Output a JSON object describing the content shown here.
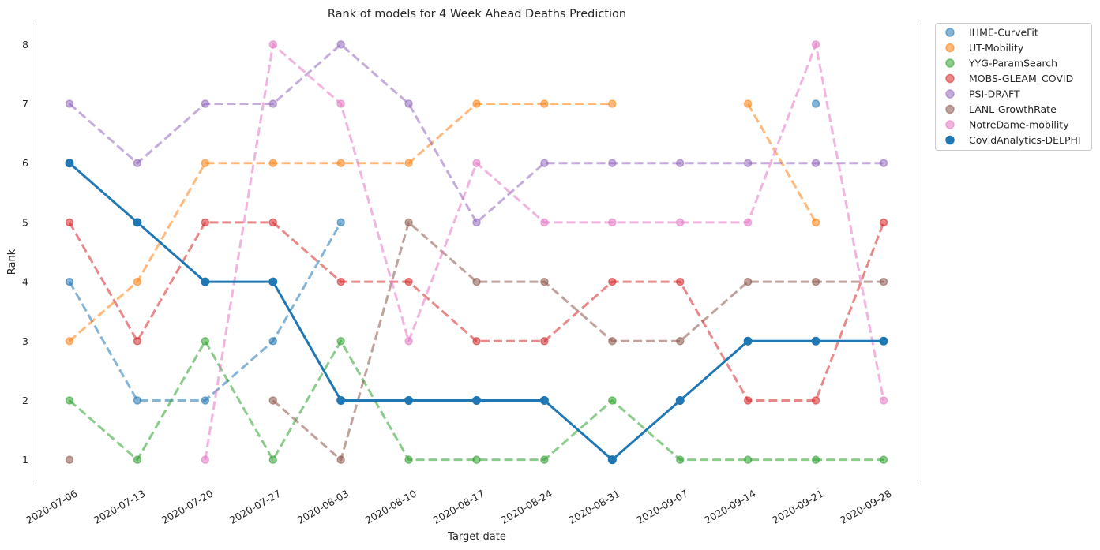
{
  "chart_data": {
    "type": "line",
    "title": "Rank of models for 4 Week Ahead Deaths Prediction",
    "xlabel": "Target date",
    "ylabel": "Rank",
    "categories": [
      "2020-07-06",
      "2020-07-13",
      "2020-07-20",
      "2020-07-27",
      "2020-08-03",
      "2020-08-10",
      "2020-08-17",
      "2020-08-24",
      "2020-08-31",
      "2020-09-07",
      "2020-09-14",
      "2020-09-21",
      "2020-09-28"
    ],
    "yticks": [
      1,
      2,
      3,
      4,
      5,
      6,
      7,
      8
    ],
    "ylim": [
      0.65,
      8.35
    ],
    "grid": false,
    "legend_position": "outside-top-right",
    "series": [
      {
        "name": "IHME-CurveFit",
        "color": "#1f77b4",
        "emphasis": false,
        "values": [
          4,
          2,
          2,
          3,
          5,
          null,
          null,
          null,
          null,
          null,
          null,
          7,
          null
        ]
      },
      {
        "name": "UT-Mobility",
        "color": "#ff7f0e",
        "emphasis": false,
        "values": [
          3,
          4,
          6,
          6,
          6,
          6,
          7,
          7,
          7,
          null,
          7,
          5,
          null
        ]
      },
      {
        "name": "YYG-ParamSearch",
        "color": "#2ca02c",
        "emphasis": false,
        "values": [
          2,
          1,
          3,
          1,
          3,
          1,
          1,
          1,
          2,
          1,
          1,
          1,
          1
        ]
      },
      {
        "name": "MOBS-GLEAM_COVID",
        "color": "#d62728",
        "emphasis": false,
        "values": [
          5,
          3,
          5,
          5,
          4,
          4,
          3,
          3,
          4,
          4,
          2,
          2,
          5
        ]
      },
      {
        "name": "PSI-DRAFT",
        "color": "#9467bd",
        "emphasis": false,
        "values": [
          7,
          6,
          7,
          7,
          8,
          7,
          5,
          6,
          6,
          6,
          6,
          6,
          6
        ]
      },
      {
        "name": "LANL-GrowthRate",
        "color": "#8c564b",
        "emphasis": false,
        "values": [
          1,
          null,
          null,
          2,
          1,
          5,
          4,
          4,
          3,
          3,
          4,
          4,
          4
        ]
      },
      {
        "name": "NotreDame-mobility",
        "color": "#e377c2",
        "emphasis": false,
        "values": [
          null,
          null,
          1,
          8,
          7,
          3,
          6,
          5,
          5,
          5,
          5,
          8,
          2
        ]
      },
      {
        "name": "CovidAnalytics-DELPHI",
        "color": "#1f77b4",
        "emphasis": true,
        "values": [
          6,
          5,
          4,
          4,
          2,
          2,
          2,
          2,
          1,
          2,
          3,
          3,
          3
        ]
      }
    ]
  }
}
